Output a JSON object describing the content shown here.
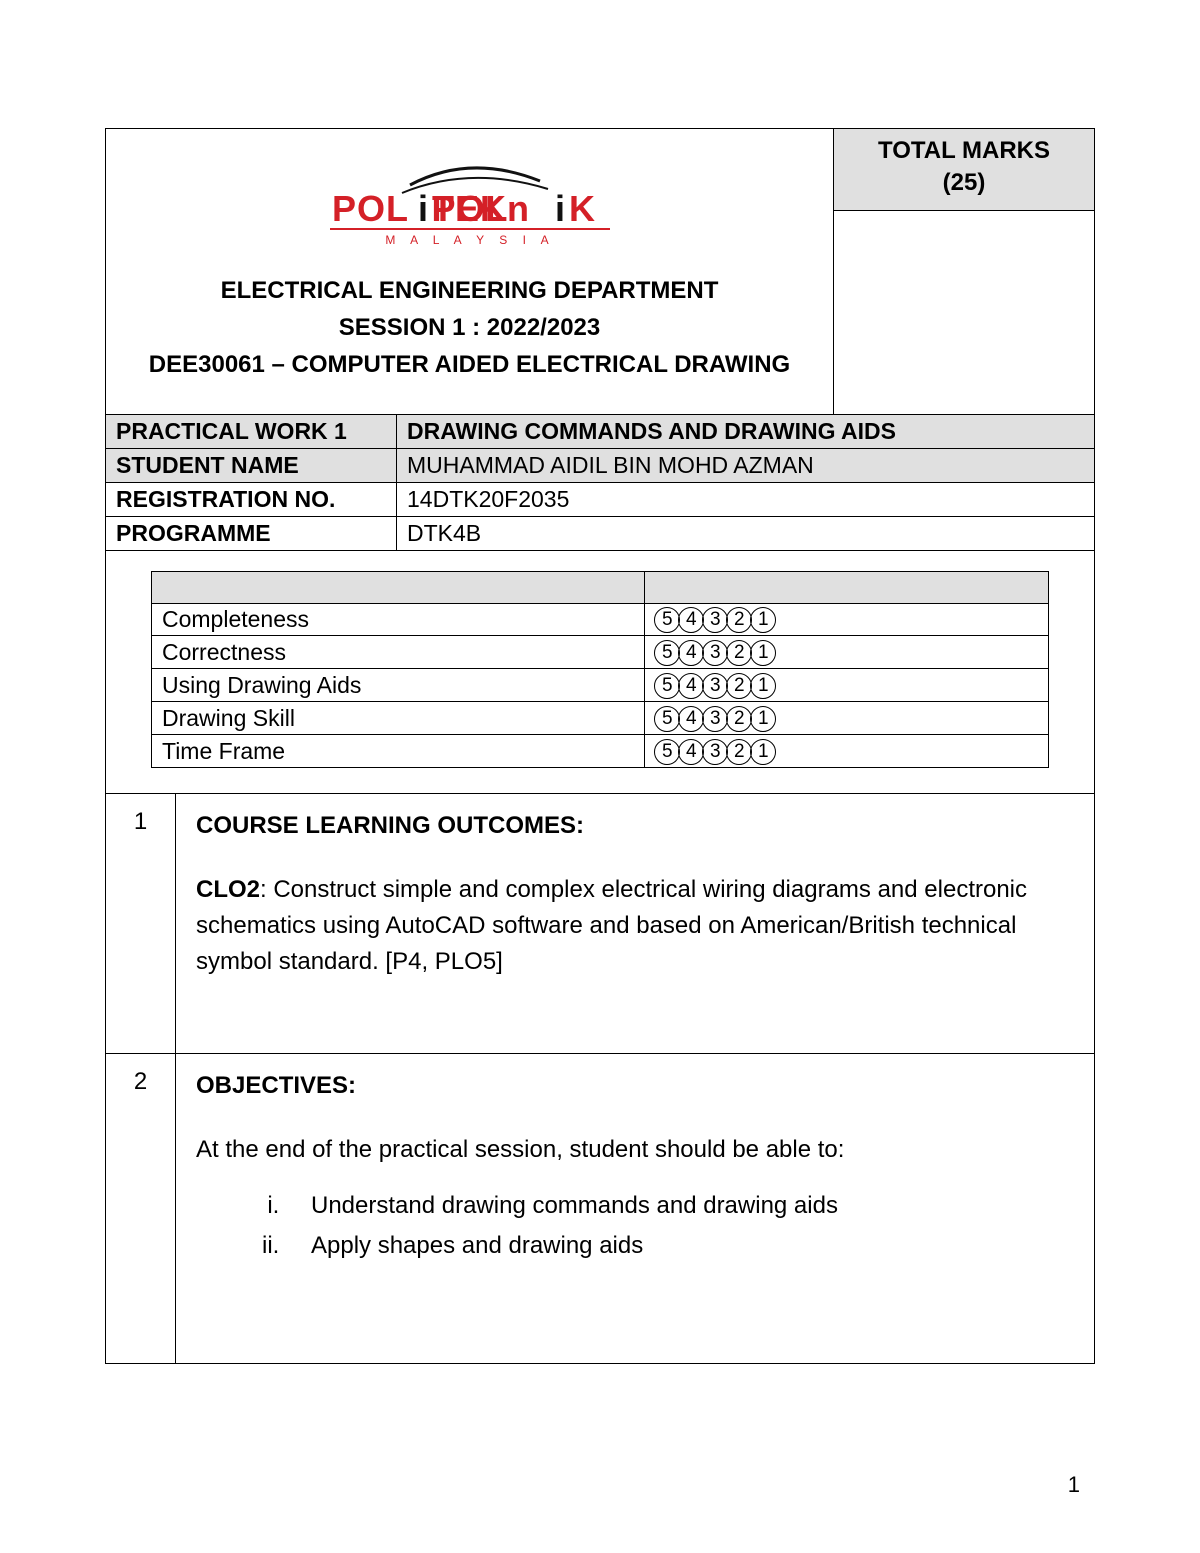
{
  "colors": {
    "border": "#000000",
    "shade": "#e0e0e0",
    "logo_red": "#d42027",
    "logo_black": "#111111",
    "page_bg": "#ffffff"
  },
  "logo": {
    "top_text": "POLiTEKniK",
    "sub_text": "M A L A Y S I A"
  },
  "header": {
    "line1": "ELECTRICAL ENGINEERING DEPARTMENT",
    "line2": "SESSION 1 : 2022/2023",
    "line3": "DEE30061 – COMPUTER AIDED ELECTRICAL DRAWING"
  },
  "marks": {
    "label": "TOTAL MARKS",
    "value": "(25)"
  },
  "info": {
    "rows": [
      {
        "label": "PRACTICAL WORK 1",
        "value": "DRAWING COMMANDS AND DRAWING AIDS",
        "shade": true,
        "bold_value": true
      },
      {
        "label": "STUDENT NAME",
        "value": "MUHAMMAD AIDIL BIN MOHD AZMAN",
        "shade": true
      },
      {
        "label": "REGISTRATION NO.",
        "value": "14DTK20F2035"
      },
      {
        "label": "PROGRAMME",
        "value": "DTK4B"
      }
    ]
  },
  "rubric": {
    "col1_width_pct": 55,
    "scores": [
      5,
      4,
      3,
      2,
      1
    ],
    "criteria": [
      "Completeness",
      "Correctness",
      "Using Drawing Aids",
      "Drawing Skill",
      "Time Frame"
    ]
  },
  "sections": [
    {
      "num": "1",
      "title": "COURSE LEARNING OUTCOMES:",
      "clo_label": "CLO2",
      "clo_text": ":  Construct simple and complex electrical wiring diagrams and electronic schematics using AutoCAD software and based on American/British technical symbol standard",
      "clo_tail": ". [P4, PLO5]"
    },
    {
      "num": "2",
      "title": "OBJECTIVES:",
      "intro": "At the end of the practical session, student should be able to:",
      "items": [
        "Understand drawing commands and drawing aids",
        "Apply shapes and drawing aids"
      ]
    }
  ],
  "page_number": "1"
}
